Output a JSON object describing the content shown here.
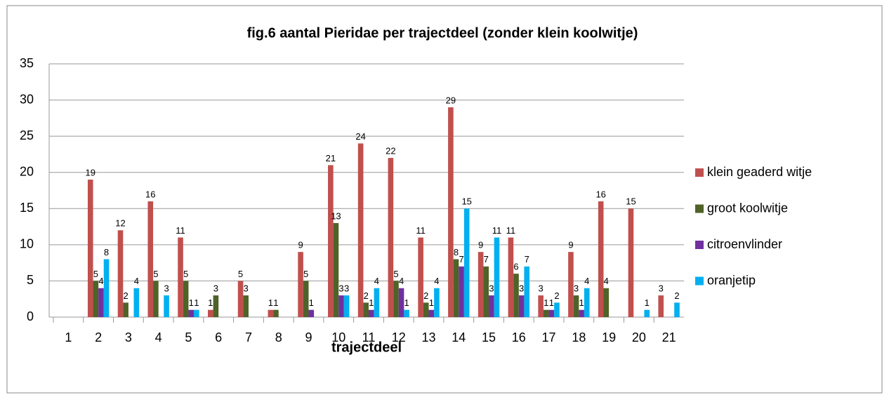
{
  "chart_data": {
    "type": "bar",
    "title": "fig.6 aantal Pieridae per trajectdeel (zonder klein koolwitje)",
    "x_label": "trajectdeel",
    "categories": [
      "1",
      "2",
      "3",
      "4",
      "5",
      "6",
      "7",
      "8",
      "9",
      "10",
      "11",
      "12",
      "13",
      "14",
      "15",
      "16",
      "17",
      "18",
      "19",
      "20",
      "21"
    ],
    "series": [
      {
        "name": "klein geaderd witje",
        "color": "#c0504d",
        "values": [
          null,
          19,
          12,
          16,
          11,
          1,
          5,
          1,
          9,
          21,
          24,
          22,
          11,
          29,
          9,
          11,
          3,
          9,
          16,
          15,
          3
        ]
      },
      {
        "name": "groot koolwitje",
        "color": "#4f6228",
        "values": [
          null,
          5,
          2,
          5,
          5,
          3,
          3,
          1,
          5,
          13,
          2,
          5,
          2,
          8,
          7,
          6,
          1,
          3,
          4,
          null,
          null
        ]
      },
      {
        "name": "citroenvlinder",
        "color": "#7030a0",
        "values": [
          null,
          4,
          null,
          null,
          1,
          null,
          null,
          null,
          1,
          3,
          1,
          4,
          1,
          7,
          3,
          3,
          1,
          1,
          null,
          null,
          null
        ]
      },
      {
        "name": "oranjetip",
        "color": "#00b0f0",
        "values": [
          null,
          8,
          4,
          3,
          1,
          null,
          null,
          null,
          null,
          3,
          4,
          1,
          4,
          15,
          11,
          7,
          2,
          4,
          null,
          1,
          2
        ]
      }
    ],
    "ylim": [
      0,
      35
    ],
    "yticks": [
      0,
      5,
      10,
      15,
      20,
      25,
      30,
      35
    ],
    "grid": true,
    "legend": "right"
  }
}
